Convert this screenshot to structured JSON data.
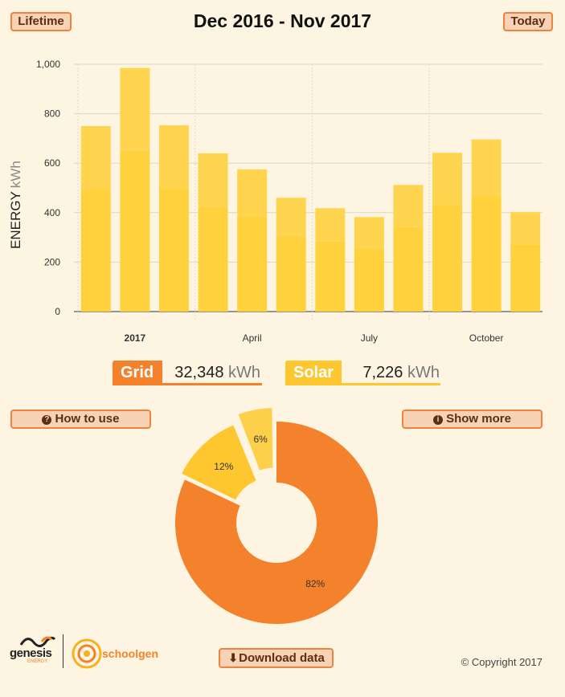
{
  "header": {
    "lifetime_label": "Lifetime",
    "title": "Dec 2016 - Nov 2017",
    "today_label": "Today"
  },
  "chart_data": {
    "type": "bar",
    "stacked": true,
    "ylabel_main": "ENERGY",
    "ylabel_unit": "kWh",
    "ylim": [
      0,
      1000
    ],
    "yticks": [
      0,
      200,
      400,
      600,
      800,
      1000
    ],
    "ytick_labels": [
      "0",
      "200",
      "400",
      "600",
      "800",
      "1,000"
    ],
    "xtick_labels": [
      {
        "index": 1,
        "label": "2017",
        "bold": true
      },
      {
        "index": 4,
        "label": "April",
        "bold": false
      },
      {
        "index": 7,
        "label": "July",
        "bold": false
      },
      {
        "index": 10,
        "label": "October",
        "bold": false
      }
    ],
    "months": 12,
    "series": [
      {
        "name": "Grid",
        "color": "#ffd23d",
        "values": [
          495,
          650,
          498,
          423,
          383,
          305,
          283,
          256,
          342,
          432,
          466,
          272
        ]
      },
      {
        "name": "Solar",
        "color": "#ffd54f",
        "values": [
          255,
          335,
          255,
          217,
          192,
          155,
          135,
          126,
          170,
          210,
          230,
          130
        ]
      }
    ],
    "grid": true
  },
  "legend": {
    "grid": {
      "label": "Grid",
      "value": "32,348",
      "unit": "kWh",
      "color": "#f4812b"
    },
    "solar": {
      "label": "Solar",
      "value": "7,226",
      "unit": "kWh",
      "color": "#fec62f"
    }
  },
  "buttons": {
    "how_to_use": "How to use",
    "show_more": "Show more",
    "download": "Download data"
  },
  "pie_data": {
    "type": "pie",
    "slices": [
      {
        "label": "82%",
        "value": 82,
        "color": "#f4812b"
      },
      {
        "label": "12%",
        "value": 12,
        "color": "#fec62f"
      },
      {
        "label": "6%",
        "value": 6,
        "color": "#fed04a"
      }
    ]
  },
  "footer": {
    "genesis_name": "genesis",
    "genesis_sub": "ENERGY",
    "schoolgen": "schoolgen",
    "copyright": "© Copyright 2017"
  }
}
